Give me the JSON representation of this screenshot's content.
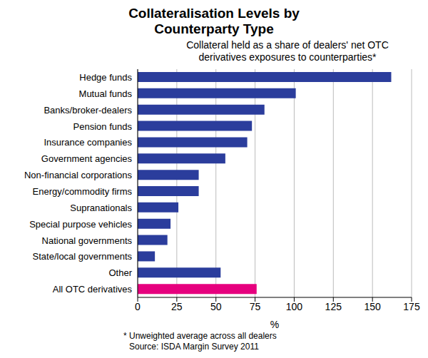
{
  "chart_data": {
    "type": "bar",
    "orientation": "horizontal",
    "title": "Collateralisation Levels by Counterparty Type",
    "subtitle": "Collateral held as a share of dealers' net OTC derivatives exposures to counterparties*",
    "x_label": "%",
    "notes": [
      "* Unweighted average across all dealers",
      "Source: ISDA Margin Survey 2011"
    ],
    "categories": [
      "Hedge funds",
      "Mutual funds",
      "Banks/broker-dealers",
      "Pension funds",
      "Insurance companies",
      "Government agencies",
      "Non-financial corporations",
      "Energy/commodity firms",
      "Supranationals",
      "Special purpose vehicles",
      "National governments",
      "State/local governments",
      "Other",
      "All OTC derivatives"
    ],
    "values": [
      162,
      101,
      81,
      73,
      70,
      56,
      39,
      39,
      26,
      21,
      19,
      11,
      53,
      76
    ],
    "colors": [
      "#2b3d9c",
      "#2b3d9c",
      "#2b3d9c",
      "#2b3d9c",
      "#2b3d9c",
      "#2b3d9c",
      "#2b3d9c",
      "#2b3d9c",
      "#2b3d9c",
      "#2b3d9c",
      "#2b3d9c",
      "#2b3d9c",
      "#2b3d9c",
      "#e6007e"
    ],
    "xlim": [
      0,
      175
    ],
    "xticks": [
      0,
      25,
      50,
      75,
      100,
      125,
      150,
      175
    ],
    "grid": true
  }
}
